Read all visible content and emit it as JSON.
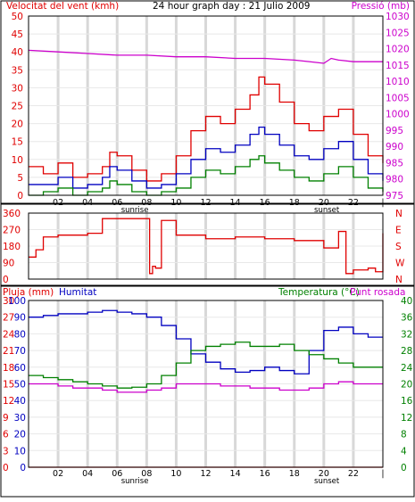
{
  "header": {
    "wind_label": "Velocitat del vent (kmh)",
    "title": "24 hour graph day : 21 Julio 2009",
    "pressure_label": "Pressió (mb)"
  },
  "colors": {
    "wind_gust": "#e00000",
    "wind_avg": "#0000c0",
    "wind_min": "#008000",
    "pressure": "#cc00cc",
    "direction": "#e00000",
    "humidity": "#0000c0",
    "temperature": "#008000",
    "dewpoint": "#cc00cc",
    "rain": "#e00000",
    "grid": "#d8d8d8",
    "frame": "#000000"
  },
  "x_ticks": [
    "02",
    "04",
    "06",
    "08",
    "10",
    "12",
    "14",
    "16",
    "18",
    "20",
    "22",
    "|"
  ],
  "sunrise_label": "sunrise",
  "sunset_label": "sunset",
  "chart_data": [
    {
      "type": "line",
      "title": "24 hour graph day : 21 Julio 2009",
      "ylabel": "Velocitat del vent (kmh)",
      "y2label": "Pressió (mb)",
      "xlim": [
        0,
        24
      ],
      "ylim": [
        0,
        50
      ],
      "y2lim": [
        975,
        1030
      ],
      "y_ticks": [
        "0",
        "5",
        "10",
        "15",
        "20",
        "25",
        "30",
        "35",
        "40",
        "45",
        "50"
      ],
      "y2_ticks": [
        "975",
        "980",
        "985",
        "990",
        "995",
        "1000",
        "1005",
        "1010",
        "1015",
        "1020",
        "1025",
        "1030"
      ],
      "grid": true,
      "series": [
        {
          "key": "gust",
          "x": [
            0,
            1,
            2,
            3,
            4,
            5,
            5.5,
            6,
            7,
            8,
            9,
            10,
            11,
            12,
            13,
            14,
            15,
            15.6,
            16,
            17,
            18,
            19,
            20,
            21,
            22,
            23,
            24
          ],
          "y": [
            8,
            6,
            9,
            5,
            6,
            8,
            12,
            11,
            7,
            4,
            6,
            11,
            18,
            22,
            20,
            24,
            28,
            33,
            31,
            26,
            20,
            18,
            22,
            24,
            17,
            11,
            9
          ]
        },
        {
          "key": "avg",
          "x": [
            0,
            1,
            2,
            3,
            4,
            5,
            5.5,
            6,
            7,
            8,
            9,
            10,
            11,
            12,
            13,
            14,
            15,
            15.6,
            16,
            17,
            18,
            19,
            20,
            21,
            22,
            23,
            24
          ],
          "y": [
            3,
            3,
            5,
            2,
            3,
            5,
            8,
            7,
            4,
            2,
            3,
            6,
            10,
            13,
            12,
            14,
            17,
            19,
            17,
            14,
            11,
            10,
            13,
            15,
            10,
            6,
            4
          ]
        },
        {
          "key": "min",
          "x": [
            0,
            1,
            2,
            3,
            4,
            5,
            5.5,
            6,
            7,
            8,
            9,
            10,
            11,
            12,
            13,
            14,
            15,
            15.6,
            16,
            17,
            18,
            19,
            20,
            21,
            22,
            23,
            24
          ],
          "y": [
            0,
            1,
            2,
            0,
            1,
            2,
            4,
            3,
            1,
            0,
            1,
            2,
            5,
            7,
            6,
            8,
            10,
            11,
            9,
            7,
            5,
            4,
            6,
            8,
            5,
            2,
            1
          ]
        },
        {
          "key": "pressure",
          "axis": "y2",
          "x": [
            0,
            2,
            4,
            6,
            8,
            10,
            12,
            14,
            16,
            18,
            19,
            20,
            20.5,
            21,
            22,
            23,
            24
          ],
          "y": [
            1019.5,
            1019,
            1018.5,
            1018,
            1018,
            1017.5,
            1017.5,
            1017,
            1017,
            1016.5,
            1016,
            1015.5,
            1017,
            1016.5,
            1016,
            1016,
            1016
          ]
        }
      ]
    },
    {
      "type": "line",
      "ylabel": "Direcció",
      "xlim": [
        0,
        24
      ],
      "ylim": [
        0,
        360
      ],
      "y_ticks": [
        "0",
        "90",
        "180",
        "270",
        "360"
      ],
      "y_right_ticks": [
        "N",
        "W",
        "S",
        "E",
        "N"
      ],
      "grid": true,
      "series": [
        {
          "key": "direction",
          "x": [
            0,
            0.5,
            1,
            2,
            3,
            4,
            5,
            6,
            7,
            8,
            8.2,
            8.4,
            8.6,
            9,
            10,
            12,
            14,
            16,
            18,
            20,
            21,
            21.5,
            22,
            23,
            23.5,
            24
          ],
          "y": [
            120,
            160,
            230,
            240,
            240,
            250,
            330,
            330,
            330,
            330,
            30,
            70,
            60,
            320,
            240,
            220,
            230,
            220,
            210,
            170,
            260,
            30,
            50,
            60,
            40,
            250
          ]
        }
      ]
    },
    {
      "type": "line",
      "ylabel": "Pluja (mm)",
      "y_mid_label": "Humitat",
      "y2label": "Temperatura (°C)",
      "y2_extra_label": "Punt rosada",
      "xlim": [
        0,
        24
      ],
      "ylim": [
        0,
        100
      ],
      "rain_ticks": [
        "0",
        "3",
        "6",
        "9",
        "12",
        "15",
        "18",
        "21",
        "24",
        "27",
        "30"
      ],
      "hum_ticks": [
        "0",
        "10",
        "20",
        "30",
        "40",
        "50",
        "60",
        "70",
        "80",
        "90",
        "100"
      ],
      "temp_ticks": [
        "0",
        "4",
        "8",
        "12",
        "16",
        "20",
        "24",
        "28",
        "32",
        "36",
        "40"
      ],
      "grid": true,
      "series": [
        {
          "key": "humidity",
          "x": [
            0,
            1,
            2,
            3,
            4,
            5,
            6,
            7,
            8,
            9,
            10,
            11,
            12,
            13,
            14,
            15,
            16,
            17,
            18,
            19,
            20,
            21,
            22,
            23,
            24
          ],
          "y": [
            90,
            91,
            92,
            92,
            93,
            94,
            93,
            92,
            90,
            85,
            77,
            68,
            63,
            59,
            57,
            58,
            60,
            58,
            56,
            70,
            82,
            84,
            80,
            78,
            78
          ]
        },
        {
          "key": "temperature",
          "axis": "temp",
          "x": [
            0,
            1,
            2,
            3,
            4,
            5,
            6,
            7,
            8,
            9,
            10,
            11,
            12,
            13,
            14,
            15,
            16,
            17,
            18,
            19,
            20,
            21,
            22,
            23,
            24
          ],
          "y": [
            22,
            21.5,
            21,
            20.5,
            20,
            19.5,
            19,
            19.2,
            20,
            22,
            25,
            28,
            29,
            29.5,
            30,
            29,
            29,
            29.5,
            28,
            27,
            26,
            25,
            24,
            24,
            24
          ]
        },
        {
          "key": "dewpoint",
          "axis": "temp",
          "x": [
            0,
            1,
            2,
            3,
            4,
            5,
            6,
            7,
            8,
            9,
            10,
            11,
            12,
            13,
            14,
            15,
            16,
            17,
            18,
            19,
            20,
            21,
            22,
            23,
            24
          ],
          "y": [
            20,
            20,
            19.5,
            19,
            19,
            18.5,
            18,
            18,
            18.5,
            19,
            20,
            20,
            20,
            19.5,
            19.5,
            19,
            19,
            18.5,
            18.5,
            19,
            20,
            20.5,
            20,
            20,
            20
          ]
        },
        {
          "key": "rain",
          "x": [
            0,
            24
          ],
          "y": [
            0,
            0
          ]
        }
      ],
      "labels": {
        "rain": "Pluja (mm)",
        "humidity": "Humitat",
        "temperature": "Temperatura (°C)",
        "dewpoint": "Punt rosada"
      }
    }
  ]
}
